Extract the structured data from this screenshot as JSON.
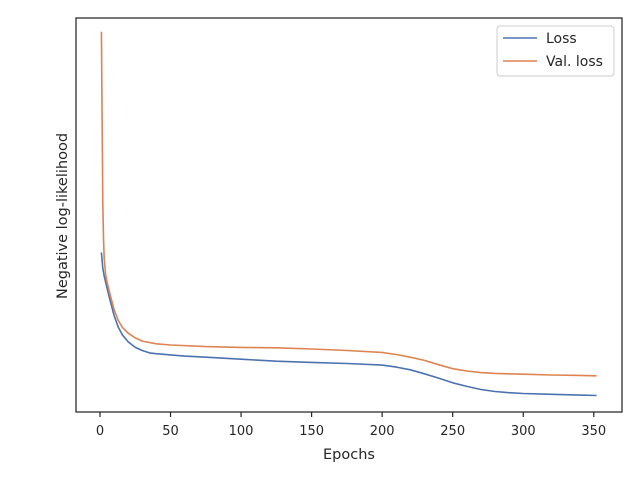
{
  "chart_data": {
    "type": "line",
    "title": "",
    "xlabel": "Epochs",
    "ylabel": "Negative log-likelihood",
    "xlim": [
      -17,
      370
    ],
    "ylim": [
      0.0,
      1.0
    ],
    "xticks": [
      0,
      50,
      100,
      150,
      200,
      250,
      300,
      350
    ],
    "yticks": [],
    "grid": false,
    "legend": "top-right",
    "series": [
      {
        "name": "Loss",
        "color": "#4c72b0",
        "x": [
          1,
          2,
          3,
          5,
          7,
          10,
          13,
          16,
          20,
          25,
          30,
          35,
          40,
          50,
          60,
          75,
          100,
          125,
          150,
          175,
          200,
          210,
          220,
          230,
          240,
          250,
          260,
          270,
          280,
          290,
          300,
          320,
          340,
          352
        ],
        "y": [
          0.405,
          0.365,
          0.345,
          0.315,
          0.285,
          0.245,
          0.215,
          0.195,
          0.178,
          0.164,
          0.156,
          0.15,
          0.148,
          0.145,
          0.142,
          0.139,
          0.134,
          0.129,
          0.126,
          0.123,
          0.119,
          0.114,
          0.107,
          0.097,
          0.086,
          0.074,
          0.065,
          0.057,
          0.052,
          0.049,
          0.047,
          0.045,
          0.043,
          0.042
        ]
      },
      {
        "name": "Val. loss",
        "color": "#dd8452",
        "x": [
          1,
          1.5,
          2,
          2.5,
          3,
          4,
          5,
          7,
          10,
          13,
          16,
          20,
          25,
          30,
          40,
          50,
          75,
          100,
          125,
          150,
          175,
          200,
          210,
          220,
          230,
          240,
          250,
          260,
          270,
          280,
          300,
          320,
          340,
          352
        ],
        "y": [
          0.965,
          0.75,
          0.53,
          0.44,
          0.39,
          0.35,
          0.33,
          0.3,
          0.26,
          0.232,
          0.214,
          0.2,
          0.188,
          0.18,
          0.173,
          0.17,
          0.166,
          0.164,
          0.163,
          0.16,
          0.156,
          0.151,
          0.146,
          0.139,
          0.131,
          0.12,
          0.11,
          0.104,
          0.1,
          0.098,
          0.096,
          0.094,
          0.093,
          0.092
        ]
      }
    ]
  }
}
